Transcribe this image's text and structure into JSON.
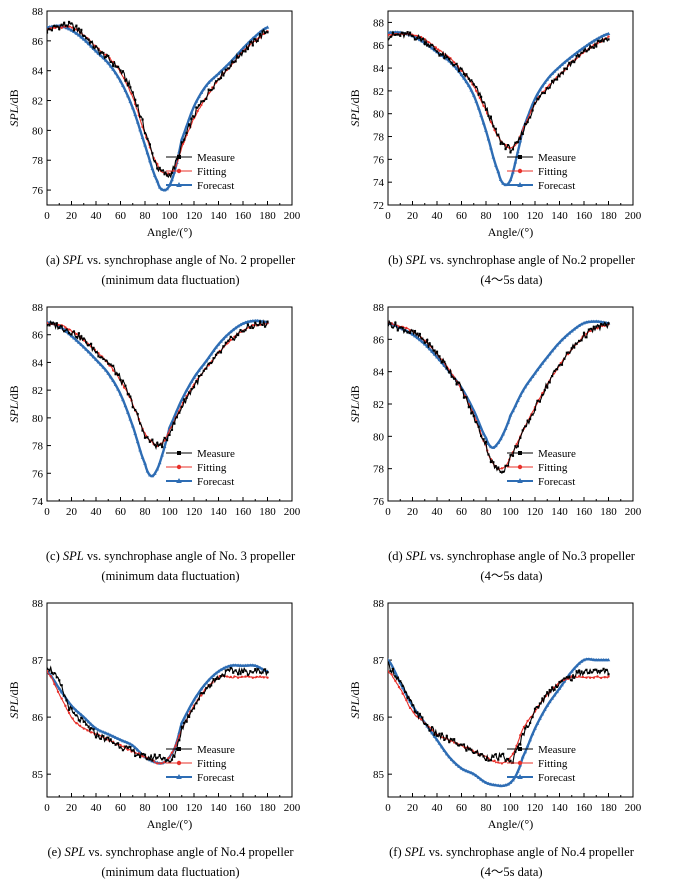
{
  "legend_labels": {
    "measure": "Measure",
    "fitting": "Fitting",
    "forecast": "Forecast"
  },
  "colors": {
    "measure": "#000000",
    "fitting": "#e8302a",
    "forecast": "#2e6db4"
  },
  "chart_data": [
    {
      "id": "a",
      "type": "line",
      "xlabel": "Angle/(°)",
      "ylabel_italic": "SPL",
      "ylabel_unit": "/dB",
      "xlim": [
        0,
        200
      ],
      "xticks": [
        0,
        20,
        40,
        60,
        80,
        100,
        120,
        140,
        160,
        180,
        200
      ],
      "ylim": [
        75,
        88
      ],
      "yticks": [
        76,
        78,
        80,
        82,
        84,
        86,
        88
      ],
      "legend_position": "right",
      "caption_prefix": "(a) ",
      "caption_italic": "SPL",
      "caption_rest": " vs. synchrophase angle of No. 2 propeller",
      "caption_line2": "(minimum data fluctuation)",
      "series": [
        {
          "name": "Measure",
          "x": [
            0,
            10,
            20,
            30,
            40,
            50,
            60,
            70,
            80,
            90,
            95,
            100,
            105,
            110,
            120,
            130,
            140,
            150,
            160,
            170,
            180
          ],
          "y": [
            86.7,
            87.0,
            87.0,
            86.4,
            85.5,
            84.8,
            84.0,
            82.5,
            80.0,
            77.6,
            77.2,
            77.0,
            77.8,
            79.0,
            81.0,
            82.3,
            83.5,
            84.4,
            85.3,
            86.0,
            86.7
          ]
        },
        {
          "name": "Fitting",
          "x": [
            0,
            10,
            20,
            30,
            40,
            50,
            60,
            70,
            80,
            90,
            95,
            100,
            105,
            110,
            120,
            130,
            140,
            150,
            160,
            170,
            180
          ],
          "y": [
            86.8,
            86.9,
            86.9,
            86.4,
            85.6,
            84.9,
            83.9,
            82.2,
            79.8,
            77.7,
            77.2,
            77.1,
            77.6,
            78.9,
            80.8,
            82.2,
            83.4,
            84.3,
            85.3,
            86.0,
            86.6
          ]
        },
        {
          "name": "Forecast",
          "x": [
            0,
            10,
            20,
            30,
            40,
            50,
            60,
            70,
            80,
            90,
            95,
            100,
            105,
            110,
            120,
            130,
            140,
            150,
            160,
            170,
            180
          ],
          "y": [
            86.9,
            87.0,
            86.7,
            86.1,
            85.3,
            84.5,
            83.3,
            81.5,
            79.0,
            76.6,
            76.0,
            76.3,
            77.5,
            79.4,
            81.6,
            83.0,
            83.8,
            84.6,
            85.5,
            86.3,
            86.9
          ]
        }
      ]
    },
    {
      "id": "b",
      "type": "line",
      "xlabel": "Angle/(°)",
      "ylabel_italic": "SPL",
      "ylabel_unit": "/dB",
      "xlim": [
        0,
        200
      ],
      "xticks": [
        0,
        20,
        40,
        60,
        80,
        100,
        120,
        140,
        160,
        180,
        200
      ],
      "ylim": [
        72,
        89
      ],
      "yticks": [
        72,
        74,
        76,
        78,
        80,
        82,
        84,
        86,
        88
      ],
      "legend_position": "right",
      "caption_prefix": "(b) ",
      "caption_italic": "SPL",
      "caption_rest": " vs. synchrophase angle of No.2 propeller",
      "caption_line2": "(4～5s data)",
      "series": [
        {
          "name": "Measure",
          "x": [
            0,
            10,
            20,
            30,
            40,
            50,
            60,
            70,
            80,
            90,
            95,
            100,
            105,
            110,
            120,
            130,
            140,
            150,
            160,
            170,
            180
          ],
          "y": [
            86.8,
            86.9,
            86.8,
            86.4,
            85.5,
            84.7,
            83.7,
            82.5,
            80.5,
            78.0,
            77.3,
            76.9,
            77.3,
            78.5,
            80.8,
            82.3,
            83.4,
            84.5,
            85.4,
            86.1,
            86.6
          ]
        },
        {
          "name": "Fitting",
          "x": [
            0,
            10,
            20,
            30,
            40,
            50,
            60,
            70,
            80,
            90,
            95,
            100,
            105,
            110,
            120,
            130,
            140,
            150,
            160,
            170,
            180
          ],
          "y": [
            86.9,
            87.0,
            86.9,
            86.5,
            85.7,
            84.9,
            83.8,
            82.4,
            80.3,
            78.0,
            77.3,
            77.0,
            77.4,
            78.6,
            80.9,
            82.3,
            83.4,
            84.5,
            85.4,
            86.1,
            86.7
          ]
        },
        {
          "name": "Forecast",
          "x": [
            0,
            10,
            20,
            30,
            40,
            50,
            60,
            70,
            80,
            90,
            95,
            100,
            105,
            110,
            120,
            130,
            140,
            150,
            160,
            170,
            180
          ],
          "y": [
            87.1,
            87.1,
            86.8,
            86.2,
            85.4,
            84.6,
            83.4,
            81.6,
            78.5,
            74.9,
            73.8,
            74.2,
            76.2,
            78.6,
            81.3,
            83.0,
            84.1,
            85.0,
            85.8,
            86.5,
            87.0
          ]
        }
      ]
    },
    {
      "id": "c",
      "type": "line",
      "xlabel": "",
      "ylabel_italic": "SPL",
      "ylabel_unit": "/dB",
      "xlim": [
        0,
        200
      ],
      "xticks": [
        0,
        20,
        40,
        60,
        80,
        100,
        120,
        140,
        160,
        180,
        200
      ],
      "ylim": [
        74,
        88
      ],
      "yticks": [
        74,
        76,
        78,
        80,
        82,
        84,
        86,
        88
      ],
      "legend_position": "right",
      "caption_prefix": "(c) ",
      "caption_italic": "SPL",
      "caption_rest": " vs. synchrophase angle of No. 3 propeller",
      "caption_line2": "(minimum data fluctuation)",
      "series": [
        {
          "name": "Measure",
          "x": [
            0,
            10,
            20,
            30,
            40,
            50,
            60,
            70,
            80,
            85,
            90,
            95,
            100,
            110,
            120,
            130,
            140,
            150,
            160,
            170,
            180
          ],
          "y": [
            86.8,
            86.6,
            86.2,
            85.6,
            84.8,
            84.0,
            82.8,
            81.0,
            78.8,
            78.3,
            78.0,
            78.2,
            79.0,
            80.8,
            82.3,
            83.5,
            84.6,
            85.6,
            86.3,
            86.7,
            86.8
          ]
        },
        {
          "name": "Fitting",
          "x": [
            0,
            10,
            20,
            30,
            40,
            50,
            60,
            70,
            80,
            85,
            90,
            95,
            100,
            110,
            120,
            130,
            140,
            150,
            160,
            170,
            180
          ],
          "y": [
            86.8,
            86.7,
            86.3,
            85.6,
            84.8,
            83.9,
            82.7,
            81.0,
            78.9,
            78.3,
            78.0,
            78.3,
            79.1,
            80.9,
            82.4,
            83.6,
            84.7,
            85.6,
            86.3,
            86.7,
            86.8
          ]
        },
        {
          "name": "Forecast",
          "x": [
            0,
            10,
            20,
            30,
            40,
            50,
            60,
            70,
            80,
            85,
            90,
            95,
            100,
            110,
            120,
            130,
            140,
            150,
            160,
            170,
            180
          ],
          "y": [
            86.9,
            86.6,
            85.9,
            85.1,
            84.2,
            83.2,
            81.7,
            79.4,
            76.7,
            75.8,
            76.3,
            77.6,
            79.3,
            81.3,
            82.9,
            84.1,
            85.3,
            86.2,
            86.8,
            87.0,
            86.9
          ]
        }
      ]
    },
    {
      "id": "d",
      "type": "line",
      "xlabel": "",
      "ylabel_italic": "SPL",
      "ylabel_unit": "/dB",
      "xlim": [
        0,
        200
      ],
      "xticks": [
        0,
        20,
        40,
        60,
        80,
        100,
        120,
        140,
        160,
        180,
        200
      ],
      "ylim": [
        76,
        88
      ],
      "yticks": [
        76,
        78,
        80,
        82,
        84,
        86,
        88
      ],
      "legend_position": "right",
      "caption_prefix": "(d) ",
      "caption_italic": "SPL",
      "caption_rest": " vs. synchrophase angle of No.3 propeller",
      "caption_line2": "(4～5s data)",
      "series": [
        {
          "name": "Measure",
          "x": [
            0,
            10,
            20,
            30,
            40,
            50,
            60,
            70,
            80,
            85,
            90,
            95,
            100,
            110,
            120,
            130,
            140,
            150,
            160,
            170,
            180
          ],
          "y": [
            87.0,
            86.7,
            86.4,
            85.9,
            85.1,
            84.1,
            82.9,
            81.2,
            79.5,
            78.4,
            77.9,
            78.0,
            78.7,
            80.2,
            81.7,
            83.2,
            84.4,
            85.4,
            86.2,
            86.7,
            86.9
          ]
        },
        {
          "name": "Fitting",
          "x": [
            0,
            10,
            20,
            30,
            40,
            50,
            60,
            70,
            80,
            85,
            90,
            95,
            100,
            110,
            120,
            130,
            140,
            150,
            160,
            170,
            180
          ],
          "y": [
            87.0,
            86.8,
            86.5,
            85.9,
            85.1,
            84.1,
            82.9,
            81.3,
            79.4,
            78.4,
            78.0,
            78.1,
            78.8,
            80.3,
            81.8,
            83.2,
            84.4,
            85.4,
            86.2,
            86.7,
            86.9
          ]
        },
        {
          "name": "Forecast",
          "x": [
            0,
            10,
            20,
            30,
            40,
            50,
            60,
            70,
            80,
            85,
            90,
            95,
            100,
            110,
            120,
            130,
            140,
            150,
            160,
            170,
            180
          ],
          "y": [
            87.0,
            86.7,
            86.3,
            85.7,
            84.9,
            84.0,
            83.0,
            81.6,
            79.9,
            79.3,
            79.6,
            80.3,
            81.3,
            82.8,
            83.9,
            84.9,
            85.8,
            86.5,
            87.0,
            87.1,
            87.0
          ]
        }
      ]
    },
    {
      "id": "e",
      "type": "line",
      "xlabel": "Angle/(°)",
      "ylabel_italic": "SPL",
      "ylabel_unit": "/dB",
      "xlim": [
        0,
        200
      ],
      "xticks": [
        0,
        20,
        40,
        60,
        80,
        100,
        120,
        140,
        160,
        180,
        200
      ],
      "ylim": [
        84.6,
        88.0
      ],
      "yticks": [
        85,
        86,
        87,
        88
      ],
      "legend_position": "right",
      "caption_prefix": "(e) ",
      "caption_italic": "SPL",
      "caption_rest": " vs. synchrophase angle of No.4 propeller",
      "caption_line2": "(minimum data fluctuation)",
      "series": [
        {
          "name": "Measure",
          "x": [
            0,
            10,
            20,
            30,
            40,
            50,
            60,
            70,
            80,
            90,
            95,
            100,
            105,
            110,
            120,
            130,
            140,
            150,
            160,
            170,
            180
          ],
          "y": [
            86.9,
            86.6,
            86.1,
            85.9,
            85.7,
            85.6,
            85.5,
            85.4,
            85.3,
            85.3,
            85.3,
            85.2,
            85.4,
            85.8,
            86.2,
            86.5,
            86.7,
            86.8,
            86.8,
            86.8,
            86.8
          ]
        },
        {
          "name": "Fitting",
          "x": [
            0,
            10,
            20,
            30,
            40,
            50,
            60,
            70,
            80,
            90,
            95,
            100,
            105,
            110,
            120,
            130,
            140,
            150,
            160,
            170,
            180
          ],
          "y": [
            86.8,
            86.4,
            86.0,
            85.8,
            85.7,
            85.6,
            85.5,
            85.4,
            85.3,
            85.2,
            85.2,
            85.3,
            85.5,
            85.8,
            86.2,
            86.5,
            86.7,
            86.7,
            86.7,
            86.7,
            86.7
          ]
        },
        {
          "name": "Forecast",
          "x": [
            0,
            10,
            20,
            30,
            40,
            50,
            60,
            70,
            80,
            90,
            95,
            100,
            105,
            110,
            120,
            130,
            140,
            150,
            160,
            170,
            180
          ],
          "y": [
            86.8,
            86.5,
            86.2,
            86.0,
            85.8,
            85.7,
            85.6,
            85.5,
            85.3,
            85.2,
            85.2,
            85.3,
            85.5,
            85.9,
            86.3,
            86.6,
            86.8,
            86.9,
            86.9,
            86.9,
            86.8
          ]
        }
      ]
    },
    {
      "id": "f",
      "type": "line",
      "xlabel": "Angle/(°)",
      "ylabel_italic": "SPL",
      "ylabel_unit": "/dB",
      "xlim": [
        0,
        200
      ],
      "xticks": [
        0,
        20,
        40,
        60,
        80,
        100,
        120,
        140,
        160,
        180,
        200
      ],
      "ylim": [
        84.6,
        88.0
      ],
      "yticks": [
        85,
        86,
        87,
        88
      ],
      "legend_position": "right",
      "caption_prefix": "(f) ",
      "caption_italic": "SPL",
      "caption_rest": " vs. synchrophase angle of No.4 propeller",
      "caption_line2": "(4～5s data)",
      "series": [
        {
          "name": "Measure",
          "x": [
            0,
            10,
            20,
            30,
            40,
            50,
            60,
            70,
            80,
            90,
            95,
            100,
            105,
            110,
            120,
            130,
            140,
            150,
            160,
            170,
            180
          ],
          "y": [
            86.9,
            86.6,
            86.2,
            85.9,
            85.7,
            85.6,
            85.5,
            85.4,
            85.3,
            85.3,
            85.3,
            85.2,
            85.4,
            85.7,
            86.1,
            86.4,
            86.6,
            86.7,
            86.8,
            86.8,
            86.8
          ]
        },
        {
          "name": "Fitting",
          "x": [
            0,
            10,
            20,
            30,
            40,
            50,
            60,
            70,
            80,
            90,
            95,
            100,
            105,
            110,
            120,
            130,
            140,
            150,
            160,
            170,
            180
          ],
          "y": [
            86.8,
            86.5,
            86.1,
            85.9,
            85.7,
            85.6,
            85.5,
            85.4,
            85.3,
            85.2,
            85.2,
            85.3,
            85.5,
            85.8,
            86.1,
            86.4,
            86.6,
            86.7,
            86.7,
            86.7,
            86.7
          ]
        },
        {
          "name": "Forecast",
          "x": [
            0,
            10,
            20,
            30,
            40,
            50,
            60,
            70,
            80,
            90,
            95,
            100,
            105,
            110,
            120,
            130,
            140,
            150,
            160,
            170,
            180
          ],
          "y": [
            87.0,
            86.6,
            86.2,
            85.9,
            85.6,
            85.3,
            85.1,
            85.0,
            84.85,
            84.8,
            84.8,
            84.85,
            85.0,
            85.3,
            85.8,
            86.2,
            86.5,
            86.8,
            87.0,
            87.0,
            87.0
          ]
        }
      ]
    }
  ]
}
